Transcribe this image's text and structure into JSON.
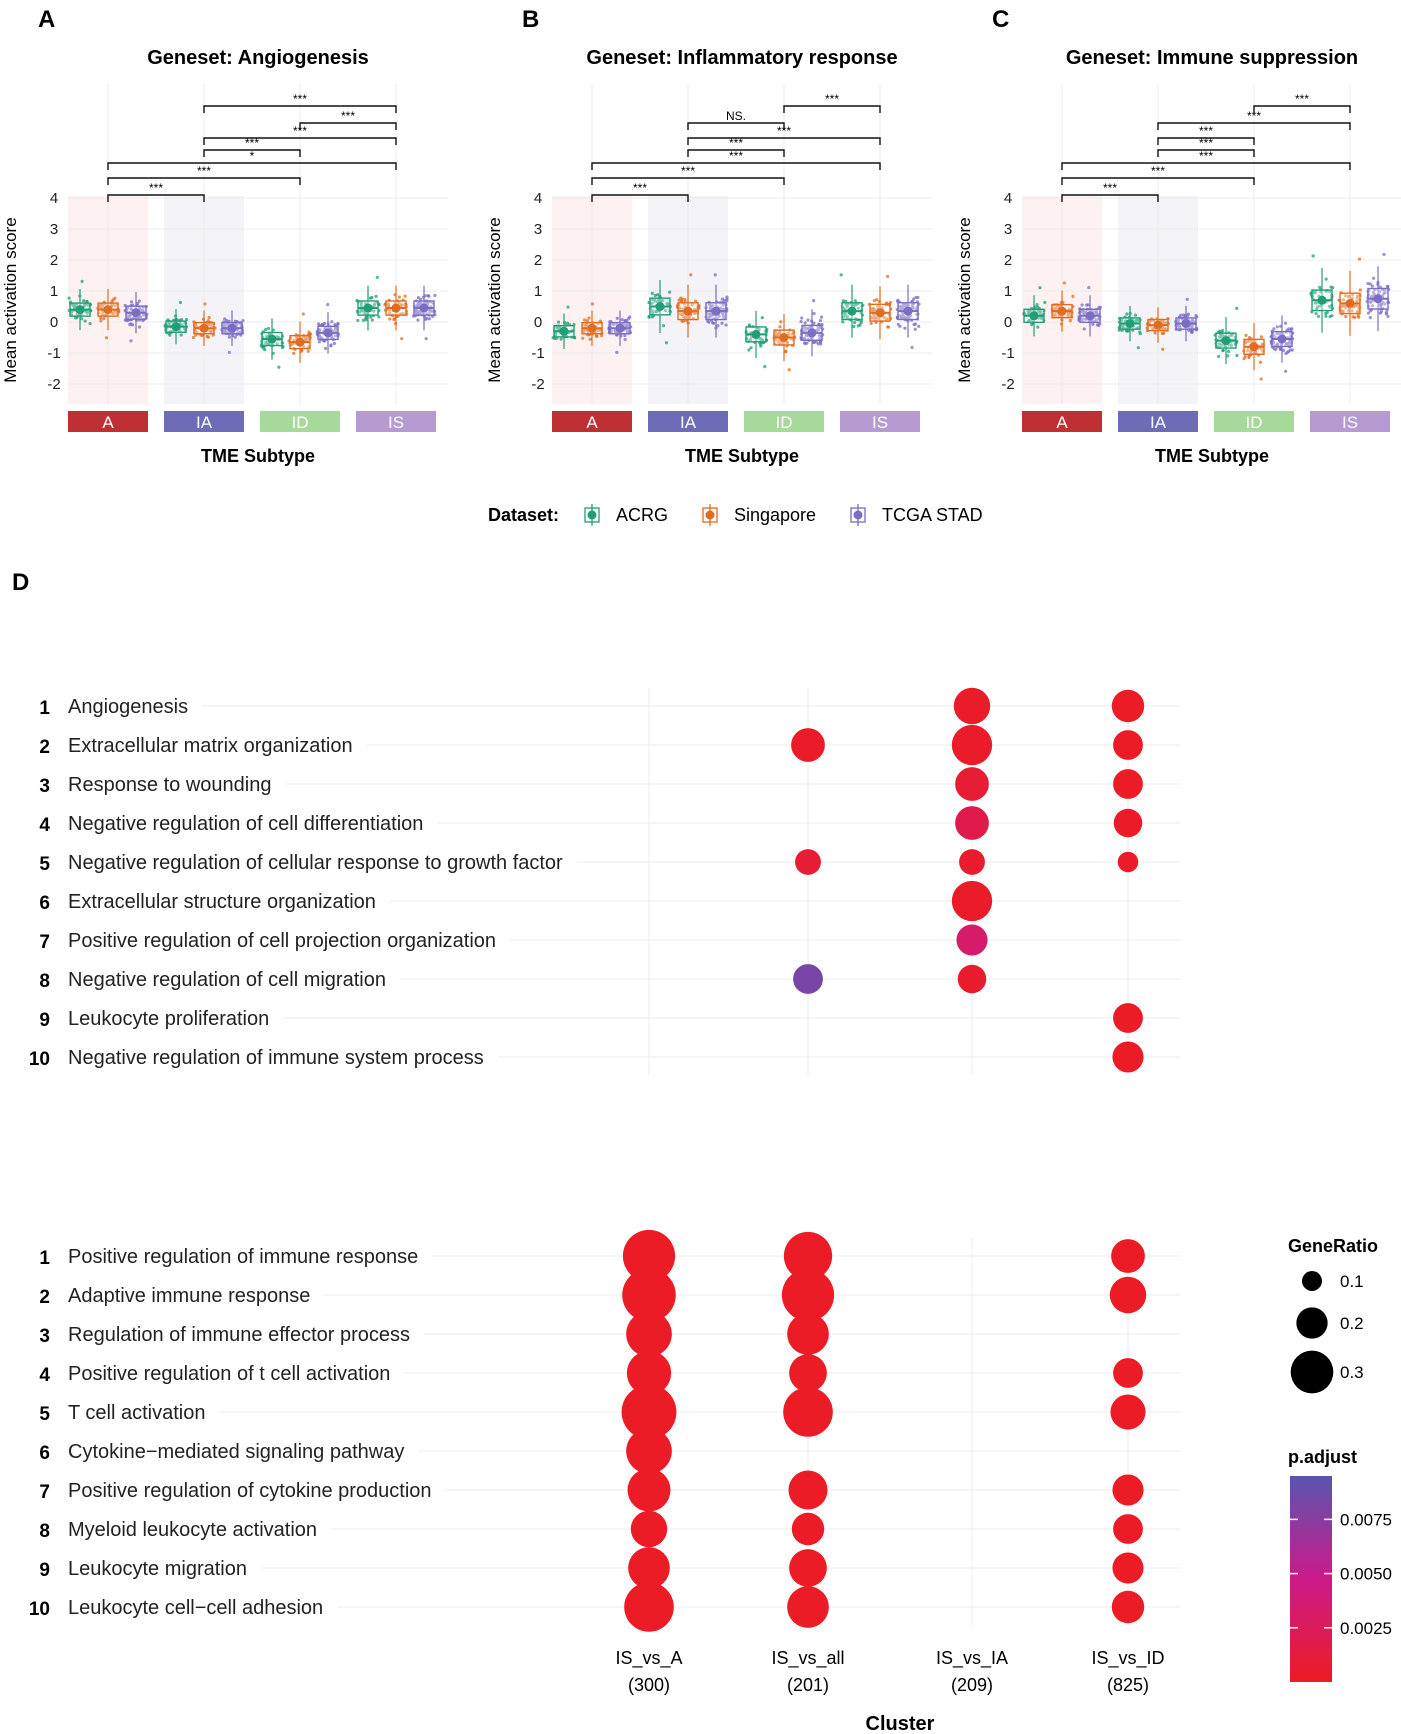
{
  "chart_data": [
    {
      "panel": "A",
      "type": "box+jitter",
      "title": "Geneset: Angiogenesis",
      "ylabel": "Mean activation score",
      "xlabel": "TME Subtype",
      "ylim": [
        -2.5,
        4
      ],
      "yticks": [
        -2,
        -1,
        0,
        1,
        2,
        3,
        4
      ],
      "categories": [
        "A",
        "IA",
        "ID",
        "IS"
      ],
      "series": [
        {
          "name": "ACRG",
          "medians": [
            0.4,
            -0.15,
            -0.55,
            0.45
          ]
        },
        {
          "name": "Singapore",
          "medians": [
            0.4,
            -0.2,
            -0.65,
            0.45
          ]
        },
        {
          "name": "TCGA STAD",
          "medians": [
            0.3,
            -0.2,
            -0.35,
            0.45
          ]
        }
      ],
      "significance": [
        {
          "from": "IA",
          "to": "IS",
          "label": "***"
        },
        {
          "from": "ID",
          "to": "IS",
          "label": "***"
        },
        {
          "from": "IA",
          "to": "IS",
          "label": "***"
        },
        {
          "from": "IA",
          "to": "ID",
          "label": "***"
        },
        {
          "from": "A",
          "to": "IS",
          "label": "*"
        },
        {
          "from": "A",
          "to": "ID",
          "label": "***"
        },
        {
          "from": "A",
          "to": "IA",
          "label": "***"
        }
      ]
    },
    {
      "panel": "B",
      "type": "box+jitter",
      "title": "Geneset: Inflammatory response",
      "ylabel": "Mean activation score",
      "xlabel": "TME Subtype",
      "ylim": [
        -2.5,
        4
      ],
      "yticks": [
        -2,
        -1,
        0,
        1,
        2,
        3,
        4
      ],
      "categories": [
        "A",
        "IA",
        "ID",
        "IS"
      ],
      "series": [
        {
          "name": "ACRG",
          "medians": [
            -0.3,
            0.5,
            -0.4,
            0.35
          ]
        },
        {
          "name": "Singapore",
          "medians": [
            -0.2,
            0.35,
            -0.5,
            0.3
          ]
        },
        {
          "name": "TCGA STAD",
          "medians": [
            -0.2,
            0.35,
            -0.35,
            0.35
          ]
        }
      ],
      "significance": [
        {
          "from": "ID",
          "to": "IS",
          "label": "***"
        },
        {
          "from": "IA",
          "to": "ID",
          "label": "NS."
        },
        {
          "from": "IA",
          "to": "IS",
          "label": "***"
        },
        {
          "from": "IA",
          "to": "ID",
          "label": "***"
        },
        {
          "from": "A",
          "to": "IS",
          "label": "***"
        },
        {
          "from": "A",
          "to": "ID",
          "label": "***"
        },
        {
          "from": "A",
          "to": "IA",
          "label": "***"
        }
      ]
    },
    {
      "panel": "C",
      "type": "box+jitter",
      "title": "Geneset: Immune suppression",
      "ylabel": "Mean activation score",
      "xlabel": "TME Subtype",
      "ylim": [
        -2.5,
        4
      ],
      "yticks": [
        -2,
        -1,
        0,
        1,
        2,
        3,
        4
      ],
      "categories": [
        "A",
        "IA",
        "ID",
        "IS"
      ],
      "series": [
        {
          "name": "ACRG",
          "medians": [
            0.2,
            -0.05,
            -0.6,
            0.7
          ]
        },
        {
          "name": "Singapore",
          "medians": [
            0.35,
            -0.1,
            -0.8,
            0.6
          ]
        },
        {
          "name": "TCGA STAD",
          "medians": [
            0.2,
            -0.05,
            -0.55,
            0.75
          ]
        }
      ],
      "significance": [
        {
          "from": "ID",
          "to": "IS",
          "label": "***"
        },
        {
          "from": "IA",
          "to": "IS",
          "label": "***"
        },
        {
          "from": "IA",
          "to": "ID",
          "label": "***"
        },
        {
          "from": "IA",
          "to": "ID",
          "label": "***"
        },
        {
          "from": "A",
          "to": "IS",
          "label": "***"
        },
        {
          "from": "A",
          "to": "ID",
          "label": "***"
        },
        {
          "from": "A",
          "to": "IA",
          "label": "***"
        }
      ]
    },
    {
      "panel": "D",
      "type": "dotplot",
      "xlabel": "Cluster",
      "clusters": [
        {
          "name": "IS_vs_A",
          "count": "(300)"
        },
        {
          "name": "IS_vs_all",
          "count": "(201)"
        },
        {
          "name": "IS_vs_IA",
          "count": "(209)"
        },
        {
          "name": "IS_vs_ID",
          "count": "(825)"
        }
      ],
      "groups": [
        {
          "terms": [
            {
              "rank": "1",
              "label": "Angiogenesis",
              "dots": [
                null,
                null,
                {
                  "ratio": 0.2,
                  "padj": 0.0003
                },
                {
                  "ratio": 0.17,
                  "padj": 0.0001
                }
              ]
            },
            {
              "rank": "2",
              "label": "Extracellular matrix organization",
              "dots": [
                null,
                {
                  "ratio": 0.18,
                  "padj": 0.0003
                },
                {
                  "ratio": 0.23,
                  "padj": 0.0003
                },
                {
                  "ratio": 0.15,
                  "padj": 0.0001
                }
              ]
            },
            {
              "rank": "3",
              "label": "Response to wounding",
              "dots": [
                null,
                null,
                {
                  "ratio": 0.18,
                  "padj": 0.0008
                },
                {
                  "ratio": 0.15,
                  "padj": 0.0001
                }
              ]
            },
            {
              "rank": "4",
              "label": "Negative regulation of cell differentiation",
              "dots": [
                null,
                null,
                {
                  "ratio": 0.18,
                  "padj": 0.0018
                },
                {
                  "ratio": 0.14,
                  "padj": 0.0002
                }
              ]
            },
            {
              "rank": "5",
              "label": "Negative regulation of cellular response to growth factor",
              "dots": [
                null,
                {
                  "ratio": 0.12,
                  "padj": 0.0008
                },
                {
                  "ratio": 0.12,
                  "padj": 0.0004
                },
                {
                  "ratio": 0.08,
                  "padj": 0.0002
                }
              ]
            },
            {
              "rank": "6",
              "label": "Extracellular structure organization",
              "dots": [
                null,
                null,
                {
                  "ratio": 0.23,
                  "padj": 0.0003
                },
                null
              ]
            },
            {
              "rank": "7",
              "label": "Positive regulation of cell projection organization",
              "dots": [
                null,
                null,
                {
                  "ratio": 0.16,
                  "padj": 0.0033
                },
                null
              ]
            },
            {
              "rank": "8",
              "label": "Negative regulation of cell migration",
              "dots": [
                null,
                {
                  "ratio": 0.15,
                  "padj": 0.0082
                },
                {
                  "ratio": 0.14,
                  "padj": 0.0004
                },
                null
              ]
            },
            {
              "rank": "9",
              "label": "Leukocyte proliferation",
              "dots": [
                null,
                null,
                null,
                {
                  "ratio": 0.15,
                  "padj": 0.0001
                }
              ]
            },
            {
              "rank": "10",
              "label": "Negative regulation of immune system process",
              "dots": [
                null,
                null,
                null,
                {
                  "ratio": 0.16,
                  "padj": 0.0001
                }
              ]
            }
          ]
        },
        {
          "terms": [
            {
              "rank": "1",
              "label": "Positive regulation of immune response",
              "dots": [
                {
                  "ratio": 0.32,
                  "padj": 0.0001
                },
                {
                  "ratio": 0.29,
                  "padj": 0.0001
                },
                null,
                {
                  "ratio": 0.18,
                  "padj": 0.0001
                }
              ]
            },
            {
              "rank": "2",
              "label": "Adaptive immune response",
              "dots": [
                {
                  "ratio": 0.33,
                  "padj": 0.0001
                },
                {
                  "ratio": 0.32,
                  "padj": 0.0001
                },
                null,
                {
                  "ratio": 0.2,
                  "padj": 0.0001
                }
              ]
            },
            {
              "rank": "3",
              "label": "Regulation of immune effector process",
              "dots": [
                {
                  "ratio": 0.27,
                  "padj": 0.0001
                },
                {
                  "ratio": 0.24,
                  "padj": 0.0001
                },
                null,
                null
              ]
            },
            {
              "rank": "4",
              "label": "Positive regulation of t cell activation",
              "dots": [
                {
                  "ratio": 0.26,
                  "padj": 0.0001
                },
                {
                  "ratio": 0.21,
                  "padj": 0.0001
                },
                null,
                {
                  "ratio": 0.15,
                  "padj": 0.0001
                }
              ]
            },
            {
              "rank": "5",
              "label": "T cell activation",
              "dots": [
                {
                  "ratio": 0.34,
                  "padj": 0.0001
                },
                {
                  "ratio": 0.3,
                  "padj": 0.0001
                },
                null,
                {
                  "ratio": 0.19,
                  "padj": 0.0001
                }
              ]
            },
            {
              "rank": "6",
              "label": "Cytokine−mediated signaling pathway",
              "dots": [
                {
                  "ratio": 0.27,
                  "padj": 0.0001
                },
                null,
                null,
                null
              ]
            },
            {
              "rank": "7",
              "label": "Positive regulation of cytokine production",
              "dots": [
                {
                  "ratio": 0.25,
                  "padj": 0.0001
                },
                {
                  "ratio": 0.22,
                  "padj": 0.0001
                },
                null,
                {
                  "ratio": 0.16,
                  "padj": 0.0001
                }
              ]
            },
            {
              "rank": "8",
              "label": "Myeloid leukocyte activation",
              "dots": [
                {
                  "ratio": 0.2,
                  "padj": 0.0001
                },
                {
                  "ratio": 0.17,
                  "padj": 0.0001
                },
                null,
                {
                  "ratio": 0.15,
                  "padj": 0.0001
                }
              ]
            },
            {
              "rank": "9",
              "label": "Leukocyte migration",
              "dots": [
                {
                  "ratio": 0.24,
                  "padj": 0.0001
                },
                {
                  "ratio": 0.21,
                  "padj": 0.0001
                },
                null,
                {
                  "ratio": 0.16,
                  "padj": 0.0001
                }
              ]
            },
            {
              "rank": "10",
              "label": "Leukocyte cell−cell adhesion",
              "dots": [
                {
                  "ratio": 0.3,
                  "padj": 0.0001
                },
                {
                  "ratio": 0.24,
                  "padj": 0.0001
                },
                null,
                {
                  "ratio": 0.17,
                  "padj": 0.0001
                }
              ]
            }
          ]
        }
      ],
      "size_legend": {
        "title": "GeneRatio",
        "values": [
          0.1,
          0.2,
          0.3
        ],
        "labels": [
          "0.1",
          "0.2",
          "0.3"
        ]
      },
      "color_legend": {
        "title": "p.adjust",
        "range": [
          0,
          0.0095
        ],
        "ticks": [
          0.0025,
          0.005,
          0.0075
        ],
        "labels": [
          "0.0025",
          "0.0050",
          "0.0075"
        ]
      }
    }
  ],
  "panel_labels": [
    "A",
    "B",
    "C",
    "D"
  ],
  "legend": {
    "title": "Dataset:",
    "items": [
      {
        "label": "ACRG",
        "color": "#1f9e77"
      },
      {
        "label": "Singapore",
        "color": "#e06c1f"
      },
      {
        "label": "TCGA STAD",
        "color": "#7b6cc4"
      }
    ]
  },
  "colors": {
    "category_fills": [
      "#bf3035",
      "#6e6bb7",
      "#a7d99b",
      "#b89ad3"
    ],
    "category_bg": [
      "#fdf1f1",
      "#f3f3f8",
      "#ffffff",
      "#ffffff"
    ],
    "dot_low": "#ec1c24",
    "dot_mid": "#cc1a8a",
    "dot_high": "#5a55b0"
  }
}
